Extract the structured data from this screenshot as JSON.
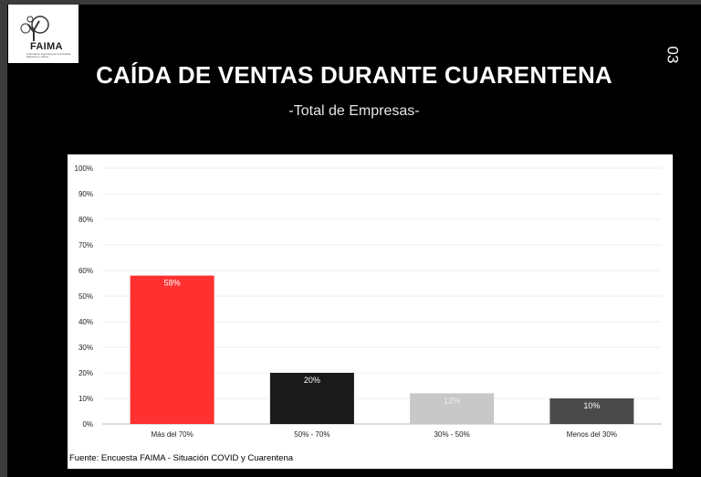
{
  "logo": {
    "name": "FAIMA",
    "subtitle": "Federación Argentina de la Industria Maderera y Afines"
  },
  "page_number": "03",
  "colors": {
    "accent": "#ff3030",
    "dark": "#1a1a1a",
    "light_gray": "#c8c8c8",
    "mid_gray": "#4a4a4a"
  },
  "chart_data": {
    "type": "bar",
    "title": "CAÍDA DE VENTAS DURANTE CUARENTENA",
    "subtitle": "-Total de Empresas-",
    "categories": [
      "Más del 70%",
      "50% - 70%",
      "30% - 50%",
      "Menos del 30%"
    ],
    "values": [
      58,
      20,
      12,
      10
    ],
    "data_labels": [
      "58%",
      "20%",
      "12%",
      "10%"
    ],
    "bar_colors": [
      "#ff3030",
      "#1a1a1a",
      "#c8c8c8",
      "#4a4a4a"
    ],
    "label_colors": [
      "#ffffff",
      "#ffffff",
      "#eeeeee",
      "#ffffff"
    ],
    "yticks": [
      "0%",
      "10%",
      "20%",
      "30%",
      "40%",
      "50%",
      "60%",
      "70%",
      "80%",
      "90%",
      "100%"
    ],
    "ylim": [
      0,
      100
    ],
    "grid": true,
    "xlabel": "",
    "ylabel": "",
    "source": "Fuente: Encuesta FAIMA - Situación COVID y Cuarentena"
  }
}
